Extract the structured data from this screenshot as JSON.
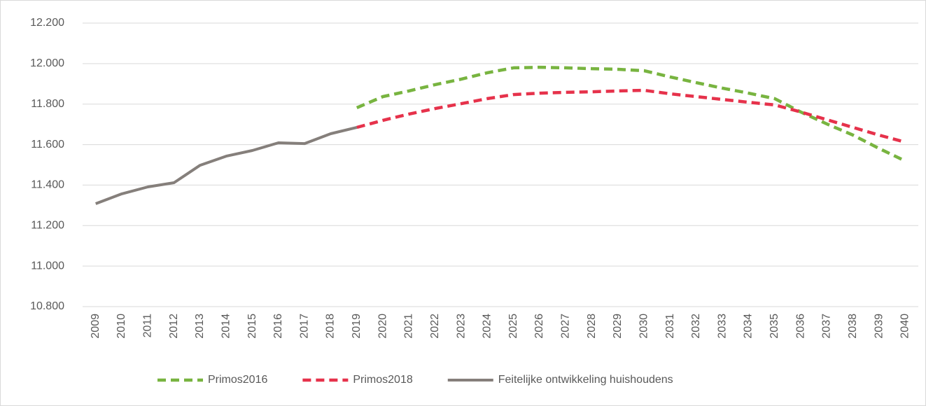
{
  "chart_data": {
    "type": "line",
    "categories": [
      "2009",
      "2010",
      "2011",
      "2012",
      "2013",
      "2014",
      "2015",
      "2016",
      "2017",
      "2018",
      "2019",
      "2020",
      "2021",
      "2022",
      "2023",
      "2024",
      "2025",
      "2026",
      "2027",
      "2028",
      "2029",
      "2030",
      "2031",
      "2032",
      "2033",
      "2034",
      "2035",
      "2036",
      "2037",
      "2038",
      "2039",
      "2040"
    ],
    "series": [
      {
        "name": "Primos2016",
        "color": "#78b440",
        "dashed": true,
        "values": [
          null,
          null,
          null,
          null,
          null,
          null,
          null,
          null,
          null,
          null,
          11782,
          11837,
          11865,
          11896,
          11923,
          11955,
          11979,
          11982,
          11979,
          11975,
          11972,
          11965,
          11934,
          11906,
          11879,
          11854,
          11827,
          11761,
          11702,
          11647,
          11581,
          11519
        ]
      },
      {
        "name": "Primos2018",
        "color": "#e6324b",
        "dashed": true,
        "values": [
          null,
          null,
          null,
          null,
          null,
          null,
          null,
          null,
          null,
          null,
          11685,
          11720,
          11751,
          11778,
          11802,
          11827,
          11847,
          11854,
          11858,
          11861,
          11865,
          11868,
          11851,
          11837,
          11823,
          11809,
          11796,
          11761,
          11723,
          11685,
          11647,
          11612
        ]
      },
      {
        "name": "Feitelijke ontwikkeling huishoudens",
        "color": "#857f7b",
        "dashed": false,
        "values": [
          11308,
          11357,
          11391,
          11412,
          11498,
          11543,
          11571,
          11609,
          11605,
          11654,
          11685,
          null,
          null,
          null,
          null,
          null,
          null,
          null,
          null,
          null,
          null,
          null,
          null,
          null,
          null,
          null,
          null,
          null,
          null,
          null,
          null,
          null
        ]
      }
    ],
    "ylim": [
      10800,
      12200
    ],
    "yticks": [
      {
        "value": 10800,
        "label": "10.800"
      },
      {
        "value": 11000,
        "label": "11.000"
      },
      {
        "value": 11200,
        "label": "11.200"
      },
      {
        "value": 11400,
        "label": "11.400"
      },
      {
        "value": 11600,
        "label": "11.600"
      },
      {
        "value": 11800,
        "label": "11.800"
      },
      {
        "value": 12000,
        "label": "12.000"
      },
      {
        "value": 12200,
        "label": "12.200"
      }
    ],
    "grid": true,
    "legend": "bottom"
  }
}
